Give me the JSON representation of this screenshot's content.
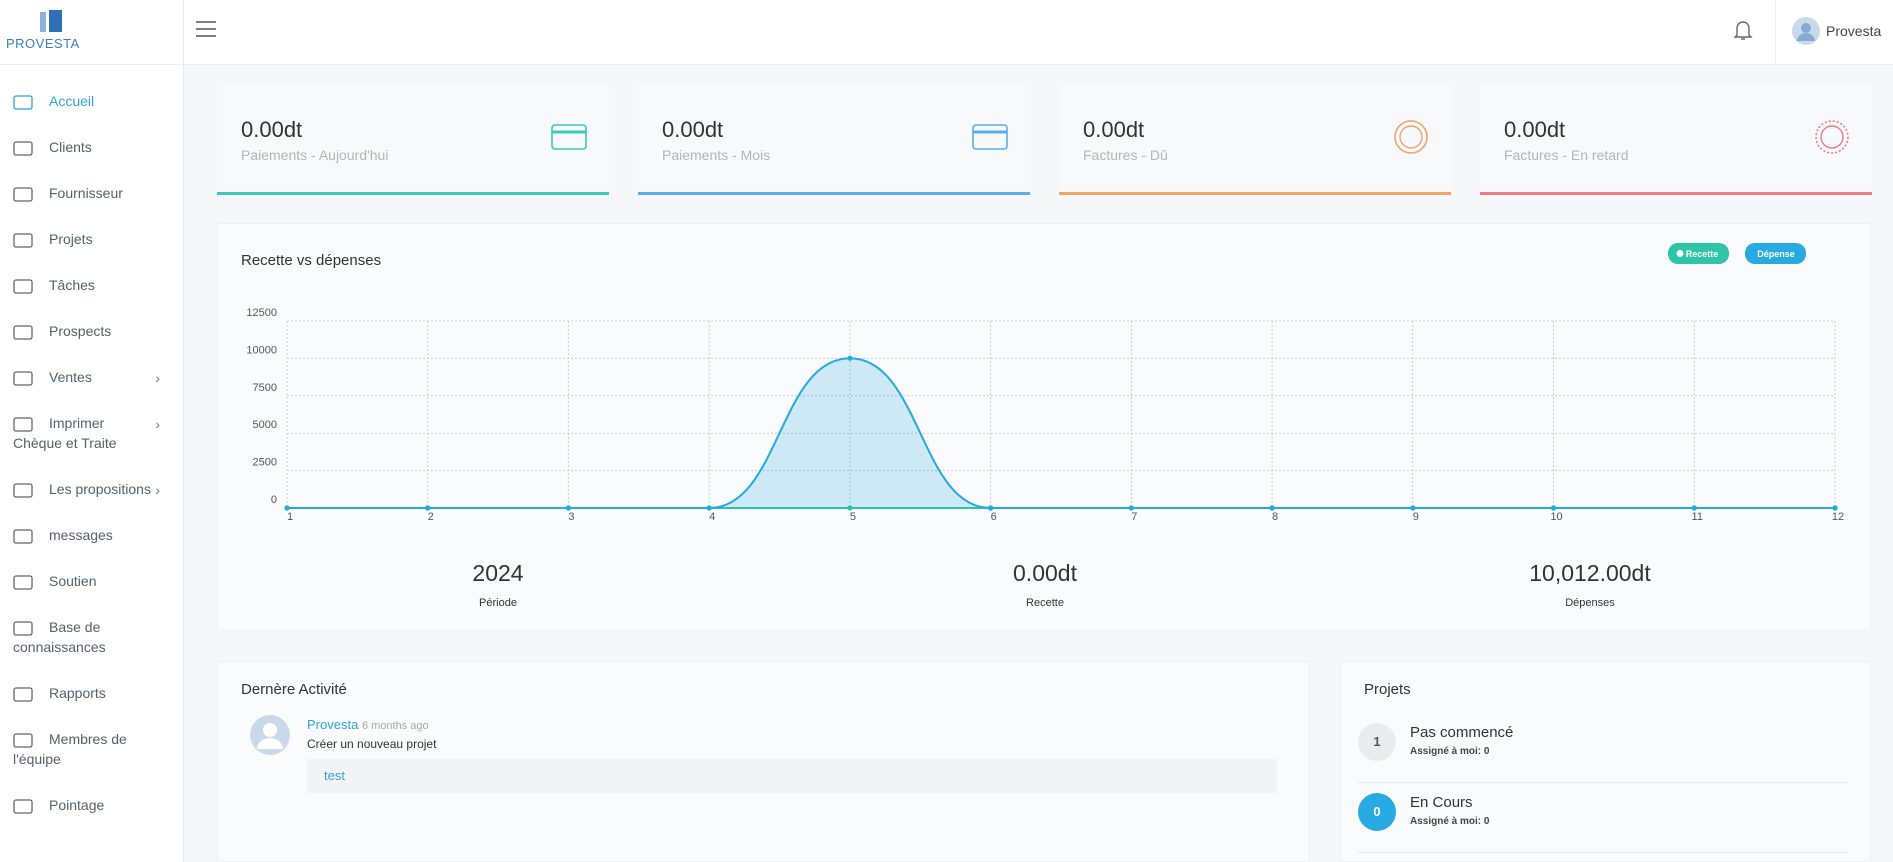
{
  "header": {
    "brand": "PROVESTA",
    "user": "Provesta"
  },
  "sidebar": {
    "items": [
      {
        "label": "Accueil",
        "active": true
      },
      {
        "label": "Clients"
      },
      {
        "label": "Fournisseur"
      },
      {
        "label": "Projets"
      },
      {
        "label": "Tâches"
      },
      {
        "label": "Prospects"
      },
      {
        "label": "Ventes",
        "has_submenu": true
      },
      {
        "label": "Imprimer Chèque et Traite",
        "has_submenu": true
      },
      {
        "label": "Les propositions",
        "has_submenu": true
      },
      {
        "label": "messages"
      },
      {
        "label": "Soutien"
      },
      {
        "label": "Base de connaissances"
      },
      {
        "label": "Rapports"
      },
      {
        "label": "Membres de l'équipe"
      },
      {
        "label": "Pointage"
      }
    ]
  },
  "cards": [
    {
      "value": "0.00dt",
      "label": "Paiements - Aujourd'hui",
      "color": "#3cc9b8"
    },
    {
      "value": "0.00dt",
      "label": "Paiements - Mois",
      "color": "#5aaee8"
    },
    {
      "value": "0.00dt",
      "label": "Factures - Dû",
      "color": "#f4a36b"
    },
    {
      "value": "0.00dt",
      "label": "Factures - En retard",
      "color": "#ef7b86"
    }
  ],
  "chart_data": {
    "type": "line",
    "title": "Recette vs dépenses",
    "x": [
      1,
      2,
      3,
      4,
      5,
      6,
      7,
      8,
      9,
      10,
      11,
      12
    ],
    "series": [
      {
        "name": "Recette",
        "color": "#2ec4a6",
        "values": [
          0,
          0,
          0,
          0,
          0,
          0,
          0,
          0,
          0,
          0,
          0,
          0
        ]
      },
      {
        "name": "Dépense",
        "color": "#27a9e1",
        "values": [
          0,
          0,
          0,
          0,
          10012,
          0,
          0,
          0,
          0,
          0,
          0,
          0
        ],
        "area": true
      }
    ],
    "xlim": [
      1,
      12
    ],
    "xticks": [
      1,
      2,
      3,
      4,
      5,
      6,
      7,
      8,
      9,
      10,
      11,
      12
    ],
    "ylim": [
      0,
      12500
    ],
    "yticks": [
      0,
      2500,
      5000,
      7500,
      10000,
      12500
    ],
    "grid": true,
    "legend": "top-right",
    "smooth": true
  },
  "summary": [
    {
      "value": "2024",
      "label": "Période"
    },
    {
      "value": "0.00dt",
      "label": "Recette"
    },
    {
      "value": "10,012.00dt",
      "label": "Dépenses"
    }
  ],
  "activity": {
    "title": "Dernère Activité",
    "items": [
      {
        "user": "Provesta",
        "time": "6 months ago",
        "action": "Créer un nouveau projet",
        "detail": "test"
      }
    ]
  },
  "projects": {
    "title": "Projets",
    "items": [
      {
        "count": 1,
        "name": "Pas commencé",
        "assigned_label": "Assigné à moi:",
        "assigned": 0,
        "color": "#e9ecef"
      },
      {
        "count": 0,
        "name": "En Cours",
        "assigned_label": "Assigné à moi:",
        "assigned": 0,
        "color": "#27a9e1"
      }
    ]
  }
}
